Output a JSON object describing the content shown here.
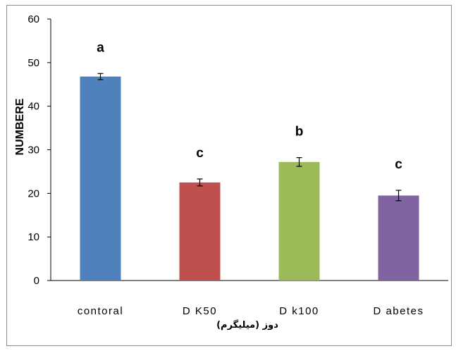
{
  "chart_data": {
    "type": "bar",
    "categories": [
      "contoral",
      "D K50",
      "D k100",
      "D abetes"
    ],
    "values": [
      46.8,
      22.5,
      27.2,
      19.5
    ],
    "errors": [
      0.7,
      0.8,
      1.0,
      1.2
    ],
    "significance_labels": [
      "a",
      "c",
      "b",
      "c"
    ],
    "colors": [
      "#4f81bd",
      "#c0504d",
      "#9bbb59",
      "#8064a2"
    ],
    "ylabel": "NUMBERE",
    "xlabel": "دوز (میلیگرم)",
    "ylim": [
      0,
      60
    ],
    "yticks": [
      "0",
      "10",
      "20",
      "30",
      "40",
      "50",
      "60"
    ],
    "grid": false,
    "legend": "none"
  }
}
